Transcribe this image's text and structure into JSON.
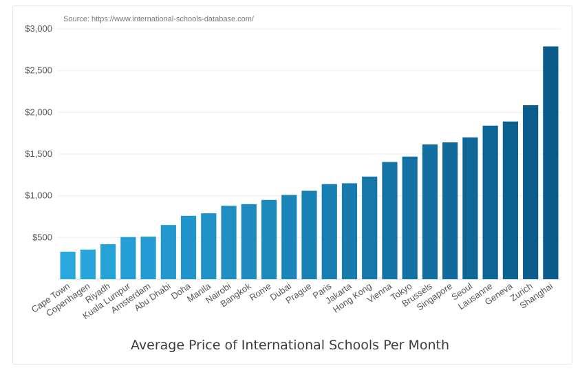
{
  "source": "Source: https://www.international-schools-database.com/",
  "chart_data": {
    "type": "bar",
    "title": "Average Price of International Schools Per Month",
    "ylim": [
      0,
      3000
    ],
    "yticks": [
      500,
      1000,
      1500,
      2000,
      2500,
      3000
    ],
    "ytick_labels": [
      "$500",
      "$1,000",
      "$1,500",
      "$2,000",
      "$2,500",
      "$3,000"
    ],
    "grid": true,
    "categories": [
      "Cape Town",
      "Copenhagen",
      "Riyadh",
      "Kuala Lumpur",
      "Amsterdam",
      "Abu Dhabi",
      "Doha",
      "Manila",
      "Nairobi",
      "Bangkok",
      "Rome",
      "Dubai",
      "Prague",
      "Paris",
      "Jakarta",
      "Hong Kong",
      "Vienna",
      "Tokyo",
      "Brussels",
      "Singapore",
      "Seoul",
      "Lausanne",
      "Geneva",
      "Zurich",
      "Shanghai"
    ],
    "values": [
      330,
      355,
      420,
      505,
      510,
      650,
      760,
      790,
      880,
      900,
      950,
      1010,
      1060,
      1140,
      1150,
      1230,
      1405,
      1470,
      1615,
      1640,
      1700,
      1840,
      1890,
      2085,
      2790
    ],
    "color_start": "#29a8e0",
    "color_end": "#0a5a8a"
  }
}
